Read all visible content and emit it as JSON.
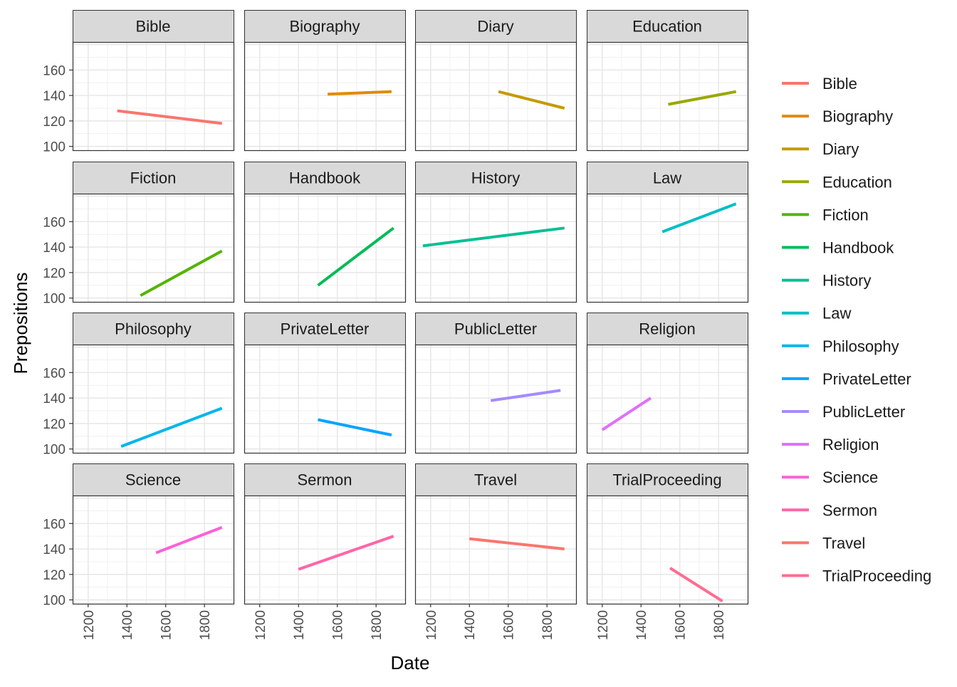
{
  "chart_data": {
    "type": "line",
    "facet_layout": "4x4 grid",
    "xlabel": "Date",
    "ylabel": "Prepositions",
    "x_ticks": [
      1200,
      1400,
      1600,
      1800
    ],
    "y_ticks": [
      100,
      120,
      140,
      160
    ],
    "xlim": [
      1120,
      1950
    ],
    "ylim": [
      97,
      182
    ],
    "grid": true,
    "legend_placement": "right",
    "panels": [
      {
        "name": "Bible",
        "color": "#F8766D",
        "x": [
          1350,
          1890
        ],
        "y": [
          128,
          118
        ]
      },
      {
        "name": "Biography",
        "color": "#E38900",
        "x": [
          1550,
          1880
        ],
        "y": [
          141,
          143
        ]
      },
      {
        "name": "Diary",
        "color": "#C49A00",
        "x": [
          1550,
          1890
        ],
        "y": [
          143,
          130
        ]
      },
      {
        "name": "Education",
        "color": "#99A800",
        "x": [
          1540,
          1890
        ],
        "y": [
          133,
          143
        ]
      },
      {
        "name": "Fiction",
        "color": "#53B400",
        "x": [
          1470,
          1890
        ],
        "y": [
          102,
          137
        ]
      },
      {
        "name": "Handbook",
        "color": "#00BC56",
        "x": [
          1500,
          1890
        ],
        "y": [
          110,
          155
        ]
      },
      {
        "name": "History",
        "color": "#00C094",
        "x": [
          1160,
          1890
        ],
        "y": [
          141,
          155
        ]
      },
      {
        "name": "Law",
        "color": "#00BFC4",
        "x": [
          1510,
          1890
        ],
        "y": [
          152,
          174
        ]
      },
      {
        "name": "Philosophy",
        "color": "#00B6EB",
        "x": [
          1370,
          1890
        ],
        "y": [
          102,
          132
        ]
      },
      {
        "name": "PrivateLetter",
        "color": "#06A4FF",
        "x": [
          1500,
          1880
        ],
        "y": [
          123,
          111
        ]
      },
      {
        "name": "PublicLetter",
        "color": "#A58AFF",
        "x": [
          1510,
          1870
        ],
        "y": [
          138,
          146
        ]
      },
      {
        "name": "Religion",
        "color": "#DF70F8",
        "x": [
          1200,
          1450
        ],
        "y": [
          115,
          140
        ]
      },
      {
        "name": "Science",
        "color": "#FB61D7",
        "x": [
          1550,
          1890
        ],
        "y": [
          137,
          157
        ]
      },
      {
        "name": "Sermon",
        "color": "#FF66A8",
        "x": [
          1400,
          1890
        ],
        "y": [
          124,
          150
        ]
      },
      {
        "name": "Travel",
        "color": "#F8766D",
        "x": [
          1400,
          1890
        ],
        "y": [
          148,
          140
        ]
      },
      {
        "name": "TrialProceeding",
        "color": "#FF6C91",
        "x": [
          1550,
          1820
        ],
        "y": [
          125,
          99
        ]
      }
    ],
    "legend": [
      {
        "label": "Bible",
        "color": "#F8766D"
      },
      {
        "label": "Biography",
        "color": "#E38900"
      },
      {
        "label": "Diary",
        "color": "#C49A00"
      },
      {
        "label": "Education",
        "color": "#99A800"
      },
      {
        "label": "Fiction",
        "color": "#53B400"
      },
      {
        "label": "Handbook",
        "color": "#00BC56"
      },
      {
        "label": "History",
        "color": "#00C094"
      },
      {
        "label": "Law",
        "color": "#00BFC4"
      },
      {
        "label": "Philosophy",
        "color": "#00B6EB"
      },
      {
        "label": "PrivateLetter",
        "color": "#06A4FF"
      },
      {
        "label": "PublicLetter",
        "color": "#A58AFF"
      },
      {
        "label": "Religion",
        "color": "#DF70F8"
      },
      {
        "label": "Science",
        "color": "#FB61D7"
      },
      {
        "label": "Sermon",
        "color": "#FF66A8"
      },
      {
        "label": "Travel",
        "color": "#F8766D"
      },
      {
        "label": "TrialProceeding",
        "color": "#FF6C91"
      }
    ]
  }
}
